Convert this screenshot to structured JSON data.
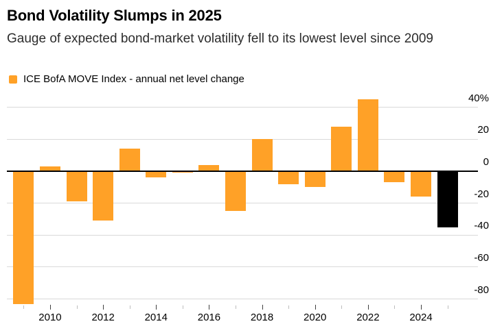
{
  "chart_data": {
    "type": "bar",
    "title": "Bond Volatility Slumps in 2025",
    "subtitle": "Gauge of expected bond-market volatility fell to its lowest level since 2009",
    "series_name": "ICE BofA MOVE Index - annual net level change",
    "categories": [
      "2009",
      "2010",
      "2011",
      "2012",
      "2013",
      "2014",
      "2015",
      "2016",
      "2017",
      "2018",
      "2019",
      "2020",
      "2021",
      "2022",
      "2023",
      "2024",
      "2025"
    ],
    "values": [
      -83,
      3,
      -19,
      -31,
      14,
      -4,
      -1,
      4,
      -25,
      20,
      -8,
      -10,
      28,
      45,
      -7,
      -16,
      -35
    ],
    "unit": "%",
    "bar_color": "#FFA127",
    "highlight_category": "2025",
    "highlight_color": "#000000",
    "grid": true,
    "legend_position": "top-left",
    "ylim": [
      -90,
      48
    ],
    "y_axis": {
      "side": "right",
      "ticks": [
        40,
        20,
        0,
        -20,
        -40,
        -60,
        -80
      ],
      "tick_labels": [
        "40%",
        "20",
        "0",
        "-20",
        "-40",
        "-60",
        "-80"
      ]
    },
    "x_axis": {
      "labeled_ticks": [
        "2010",
        "2012",
        "2014",
        "2016",
        "2018",
        "2020",
        "2022",
        "2024"
      ]
    }
  }
}
